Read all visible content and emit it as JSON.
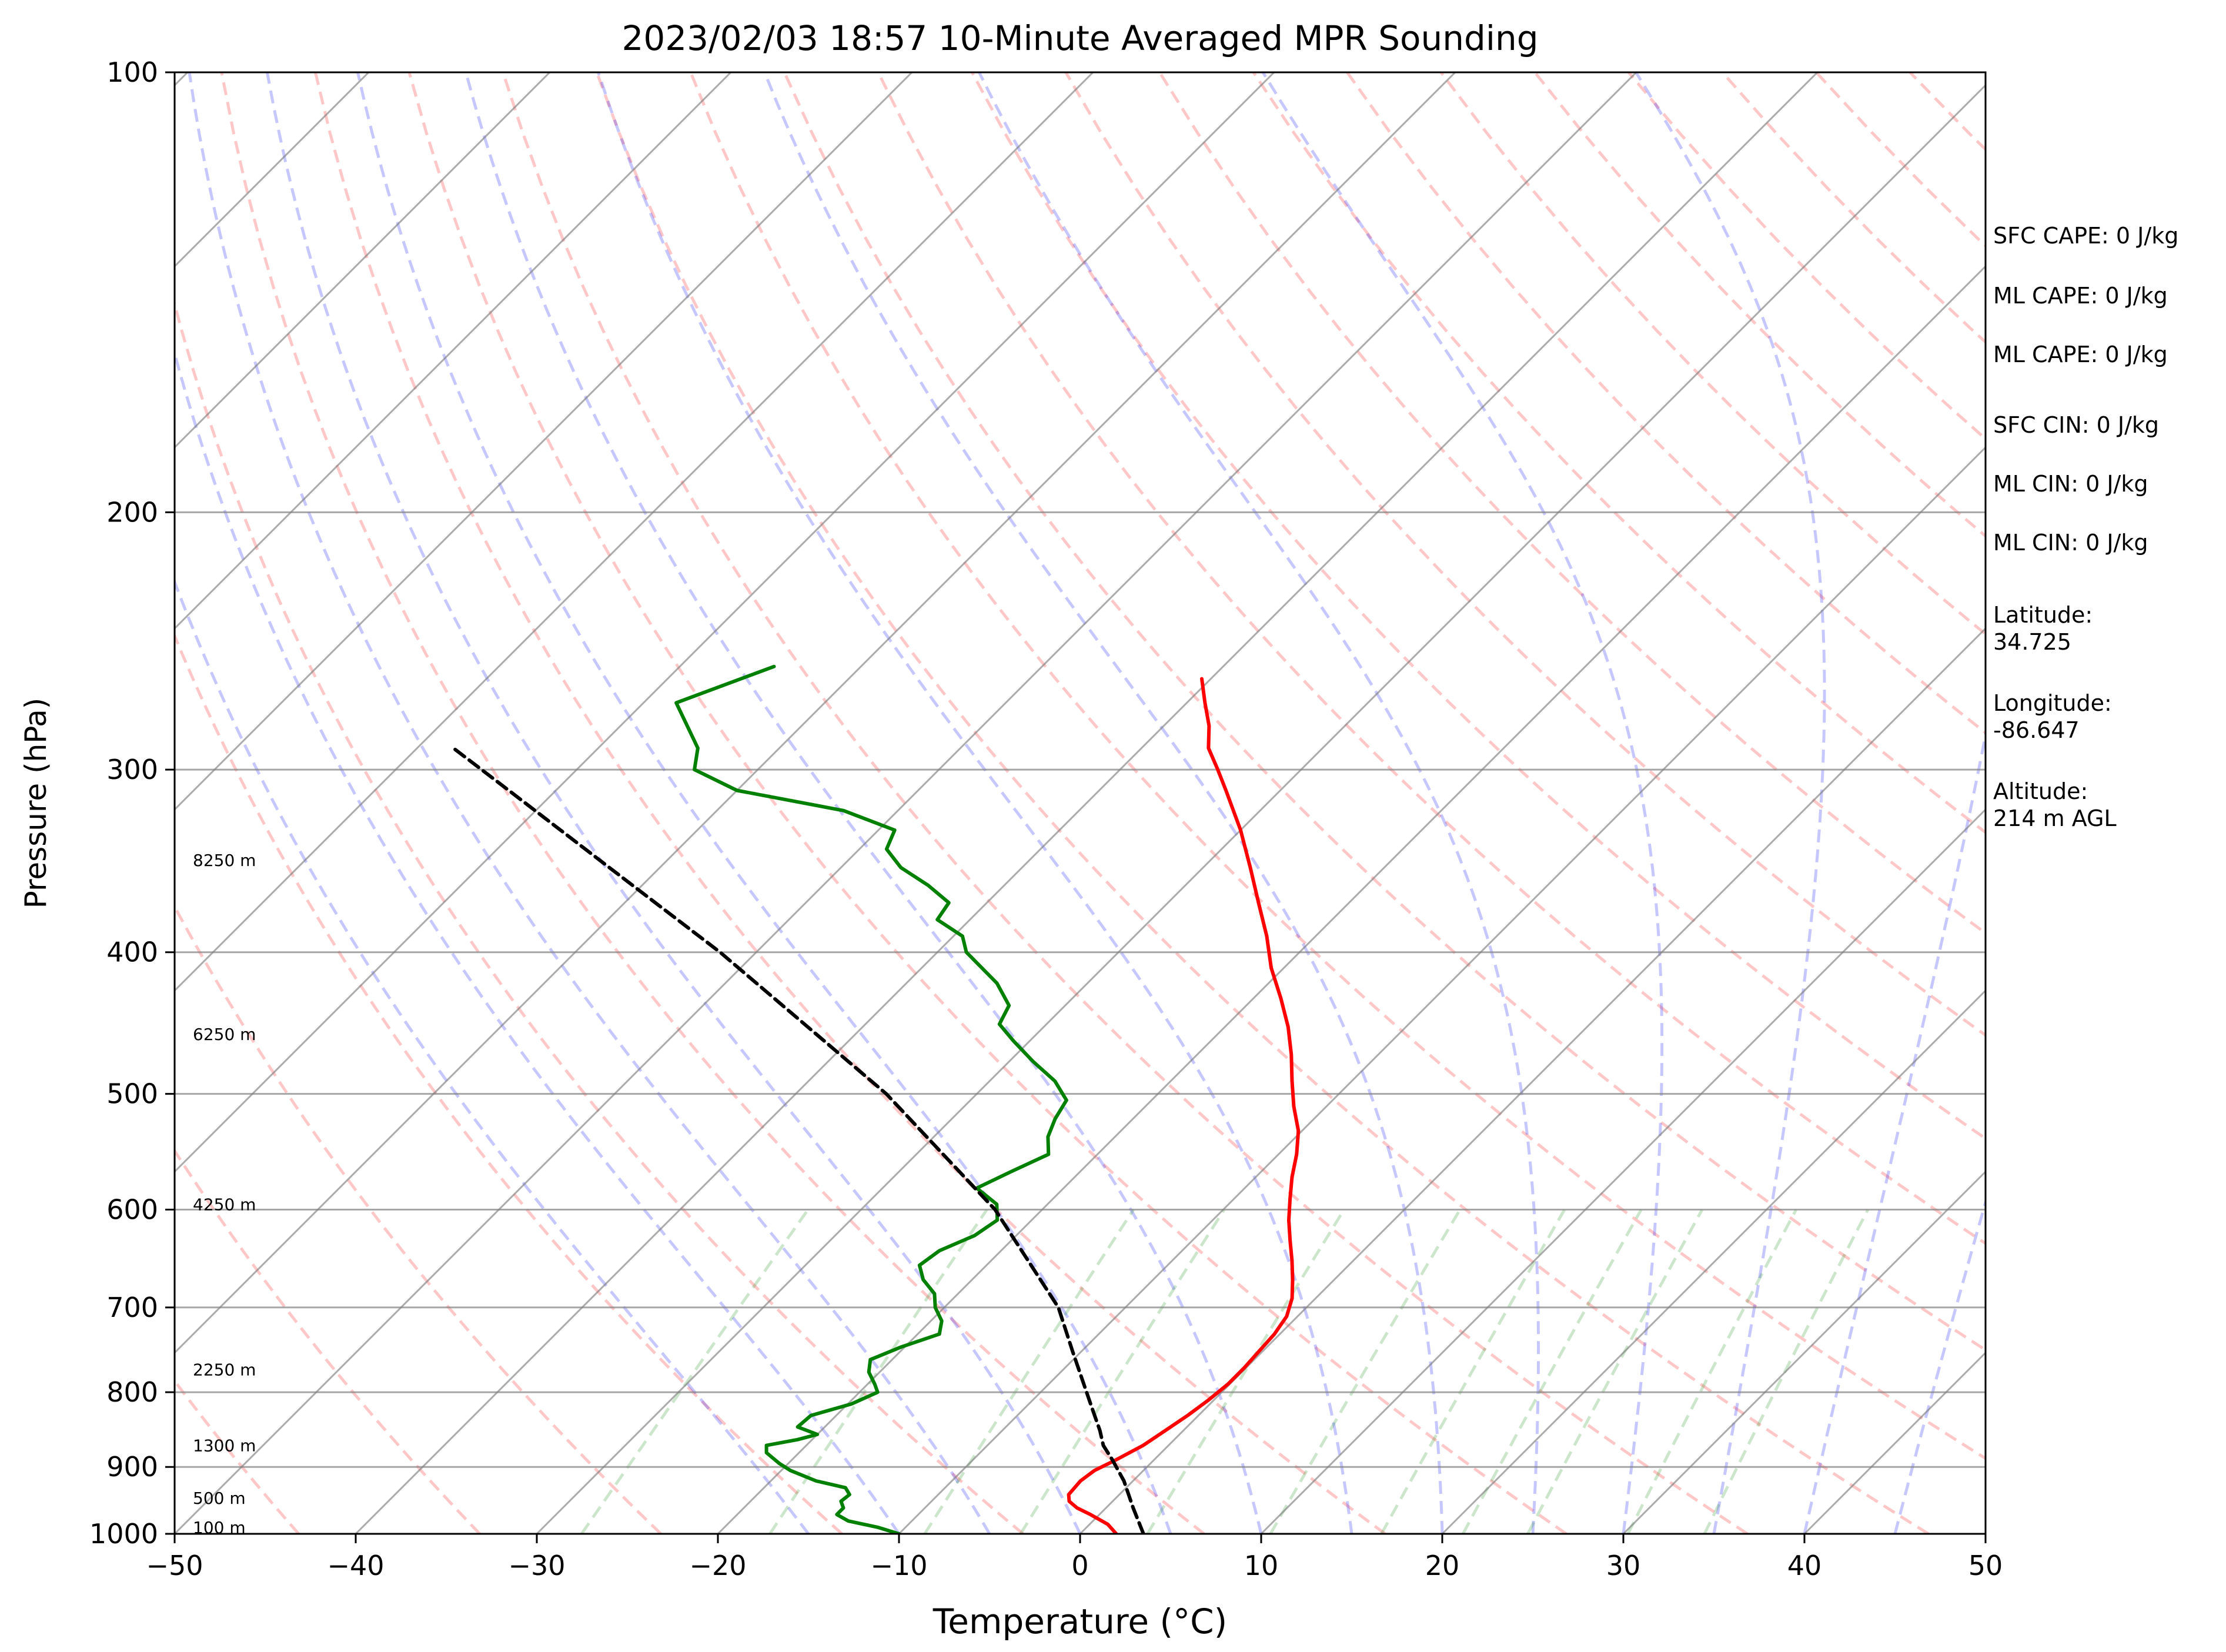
{
  "chart_data": {
    "type": "skew-t",
    "title": "2023/02/03 18:57 10-Minute Averaged MPR Sounding",
    "xlabel": "Temperature (°C)",
    "ylabel": "Pressure (hPa)",
    "xlim": [
      -50,
      50
    ],
    "ylim": [
      1000,
      100
    ],
    "y_scale": "log",
    "grid": true,
    "x_ticks": [
      "−50",
      "−40",
      "−30",
      "−20",
      "−10",
      "0",
      "10",
      "20",
      "30",
      "40",
      "50"
    ],
    "y_ticks": [
      "100",
      "200",
      "300",
      "400",
      "500",
      "600",
      "700",
      "800",
      "900",
      "1000"
    ],
    "height_labels": [
      {
        "text": "100 m",
        "pressure": 990
      },
      {
        "text": "500 m",
        "pressure": 945
      },
      {
        "text": "1300 m",
        "pressure": 870
      },
      {
        "text": "2250 m",
        "pressure": 772
      },
      {
        "text": "4250 m",
        "pressure": 595
      },
      {
        "text": "6250 m",
        "pressure": 455
      },
      {
        "text": "8250 m",
        "pressure": 346
      }
    ],
    "series": [
      {
        "kind": "temperature",
        "color": "#ff0000",
        "points": [
          [
            1000,
            2.0
          ],
          [
            985,
            1.0
          ],
          [
            970,
            -0.5
          ],
          [
            960,
            -1.6
          ],
          [
            950,
            -2.4
          ],
          [
            940,
            -2.8
          ],
          [
            920,
            -2.9
          ],
          [
            905,
            -2.7
          ],
          [
            890,
            -2.1
          ],
          [
            870,
            -1.4
          ],
          [
            850,
            -1.0
          ],
          [
            830,
            -0.6
          ],
          [
            810,
            -0.3
          ],
          [
            790,
            -0.1
          ],
          [
            770,
            -0.1
          ],
          [
            750,
            -0.2
          ],
          [
            730,
            -0.3
          ],
          [
            710,
            -0.6
          ],
          [
            690,
            -1.3
          ],
          [
            670,
            -2.3
          ],
          [
            650,
            -3.4
          ],
          [
            630,
            -4.6
          ],
          [
            610,
            -5.8
          ],
          [
            590,
            -6.9
          ],
          [
            570,
            -8.0
          ],
          [
            550,
            -9.0
          ],
          [
            530,
            -10.2
          ],
          [
            510,
            -11.8
          ],
          [
            490,
            -13.3
          ],
          [
            470,
            -14.8
          ],
          [
            450,
            -16.5
          ],
          [
            430,
            -18.5
          ],
          [
            410,
            -20.7
          ],
          [
            390,
            -22.7
          ],
          [
            370,
            -25.0
          ],
          [
            350,
            -27.4
          ],
          [
            330,
            -30.0
          ],
          [
            310,
            -33.0
          ],
          [
            300,
            -34.6
          ],
          [
            290,
            -36.3
          ],
          [
            280,
            -37.5
          ],
          [
            270,
            -39.0
          ],
          [
            260,
            -40.5
          ]
        ]
      },
      {
        "kind": "dewpoint",
        "color": "#008000",
        "points": [
          [
            1000,
            -10.0
          ],
          [
            990,
            -11.5
          ],
          [
            980,
            -13.5
          ],
          [
            970,
            -14.5
          ],
          [
            960,
            -14.5
          ],
          [
            950,
            -15.0
          ],
          [
            940,
            -14.9
          ],
          [
            930,
            -15.5
          ],
          [
            920,
            -17.5
          ],
          [
            905,
            -19.5
          ],
          [
            895,
            -20.5
          ],
          [
            880,
            -21.8
          ],
          [
            870,
            -22.2
          ],
          [
            862,
            -20.8
          ],
          [
            855,
            -20.0
          ],
          [
            845,
            -21.5
          ],
          [
            830,
            -21.4
          ],
          [
            815,
            -19.8
          ],
          [
            800,
            -19.0
          ],
          [
            790,
            -19.6
          ],
          [
            775,
            -20.6
          ],
          [
            760,
            -21.2
          ],
          [
            745,
            -20.2
          ],
          [
            730,
            -18.8
          ],
          [
            715,
            -19.4
          ],
          [
            700,
            -20.5
          ],
          [
            685,
            -21.3
          ],
          [
            670,
            -22.7
          ],
          [
            655,
            -23.7
          ],
          [
            640,
            -23.4
          ],
          [
            625,
            -22.3
          ],
          [
            610,
            -21.9
          ],
          [
            595,
            -22.8
          ],
          [
            580,
            -24.8
          ],
          [
            565,
            -23.8
          ],
          [
            550,
            -22.7
          ],
          [
            535,
            -23.7
          ],
          [
            520,
            -24.3
          ],
          [
            505,
            -24.7
          ],
          [
            490,
            -26.4
          ],
          [
            475,
            -28.7
          ],
          [
            460,
            -30.9
          ],
          [
            448,
            -32.6
          ],
          [
            435,
            -33.1
          ],
          [
            420,
            -35.0
          ],
          [
            400,
            -38.4
          ],
          [
            390,
            -39.5
          ],
          [
            380,
            -41.8
          ],
          [
            370,
            -42.1
          ],
          [
            360,
            -44.2
          ],
          [
            350,
            -46.7
          ],
          [
            340,
            -48.5
          ],
          [
            330,
            -49.1
          ],
          [
            320,
            -53.0
          ],
          [
            310,
            -60.0
          ],
          [
            300,
            -63.5
          ],
          [
            290,
            -64.5
          ],
          [
            270,
            -68.2
          ],
          [
            255,
            -64.8
          ]
        ]
      },
      {
        "kind": "parcel",
        "color": "#000000",
        "style": "dashed",
        "points": [
          [
            1000,
            3.5
          ],
          [
            960,
            1.5
          ],
          [
            920,
            -0.5
          ],
          [
            890,
            -2.3
          ],
          [
            870,
            -3.6
          ],
          [
            850,
            -4.6
          ],
          [
            820,
            -6.3
          ],
          [
            750,
            -10.5
          ],
          [
            700,
            -13.7
          ],
          [
            600,
            -22.6
          ],
          [
            500,
            -35.0
          ],
          [
            400,
            -52.0
          ],
          [
            350,
            -62.8
          ],
          [
            310,
            -72.6
          ],
          [
            290,
            -78.0
          ]
        ]
      }
    ]
  },
  "info_panel": [
    "SFC CAPE: 0 J/kg",
    "ML CAPE: 0 J/kg",
    "ML CAPE: 0 J/kg",
    "SFC CIN: 0 J/kg",
    "ML CIN: 0 J/kg",
    "ML CIN: 0 J/kg",
    "Latitude:\n34.725",
    "Longitude:\n-86.647",
    "Altitude:\n214 m AGL"
  ]
}
